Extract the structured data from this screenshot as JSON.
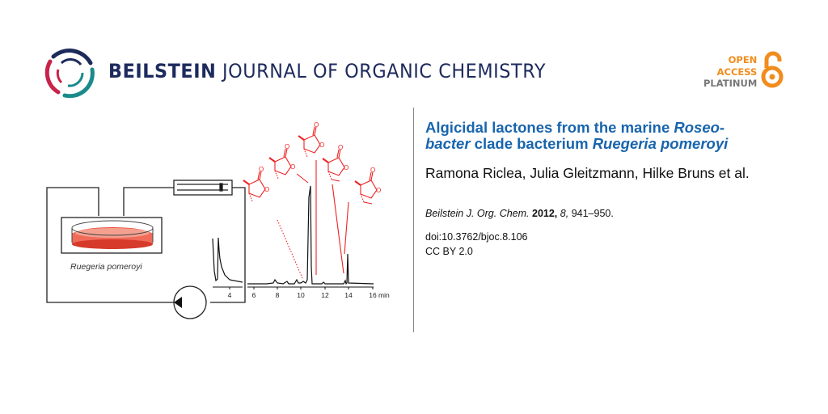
{
  "header": {
    "journal_bold": "BEILSTEIN",
    "journal_rest": " JOURNAL OF ORGANIC CHEMISTRY",
    "open_access": [
      "OPEN",
      "ACCESS",
      "PLATINUM"
    ],
    "colors": {
      "navy": "#1d2a5c",
      "crimson": "#c8234a",
      "teal": "#1a8a8a",
      "orange": "#f28c1c",
      "gray": "#777777"
    }
  },
  "figure": {
    "organism_label": "Ruegeria pomeroyi",
    "x_ticks": [
      "4",
      "6",
      "8",
      "10",
      "12",
      "14",
      "16"
    ],
    "x_unit": "min",
    "colors": {
      "structures": "#ee2222",
      "dish": "#e84a3a",
      "trace": "#000000"
    }
  },
  "article": {
    "title_1": "Algicidal lactones from the marine ",
    "title_2": "Roseo-",
    "title_3": "bacter",
    "title_4": " clade bacterium ",
    "title_5": "Ruegeria pomeroyi",
    "authors": "Ramona Riclea, Julia Gleitzmann, Hilke Bruns et al.",
    "citation_journal": "Beilstein J. Org. Chem.",
    "citation_year": "2012,",
    "citation_volume": "8,",
    "citation_pages": "941–950.",
    "doi": "doi:10.3762/bjoc.8.106",
    "license": "CC BY 2.0",
    "title_color": "#1865ad"
  }
}
